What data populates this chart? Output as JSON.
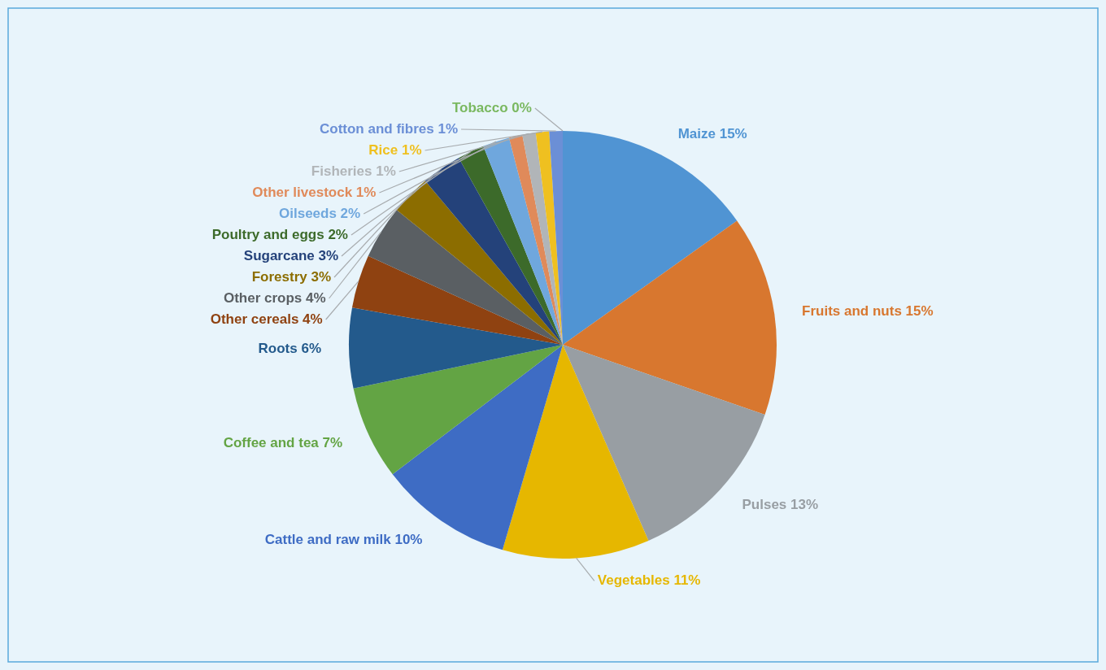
{
  "chart_data": {
    "type": "pie",
    "categories": [
      "Maize",
      "Fruits and nuts",
      "Pulses",
      "Vegetables",
      "Cattle and raw milk",
      "Coffee and tea",
      "Roots",
      "Other cereals",
      "Other crops",
      "Forestry",
      "Sugarcane",
      "Poultry and eggs",
      "Oilseeds",
      "Other livestock",
      "Fisheries",
      "Rice",
      "Cotton and fibres",
      "Tobacco"
    ],
    "values": [
      15,
      15,
      13,
      11,
      10,
      7,
      6,
      4,
      4,
      3,
      3,
      2,
      2,
      1,
      1,
      1,
      1,
      0
    ],
    "value_labels": [
      "15%",
      "15%",
      "13%",
      "11%",
      "10%",
      "7%",
      "6%",
      "4%",
      "4%",
      "3%",
      "3%",
      "2%",
      "2%",
      "1%",
      "1%",
      "1%",
      "1%",
      "0%"
    ],
    "colors": [
      "#5094d3",
      "#d8772f",
      "#989ea3",
      "#e6b700",
      "#3e6cc4",
      "#63a444",
      "#235a8c",
      "#8f4211",
      "#5a5f63",
      "#8c6d00",
      "#24427a",
      "#3c6a2a",
      "#6fa7dd",
      "#e08a5a",
      "#b1b5b8",
      "#efc020",
      "#6b8fd6",
      "#7ab860"
    ]
  }
}
